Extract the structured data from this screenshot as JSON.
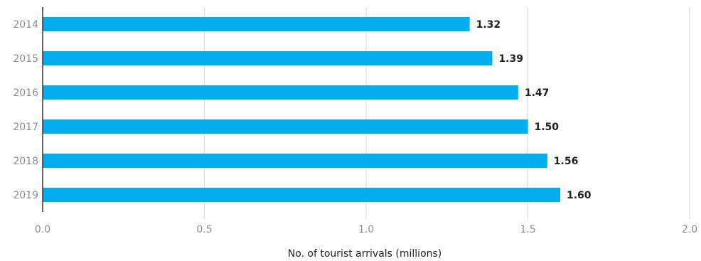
{
  "chart_data": {
    "type": "bar",
    "orientation": "horizontal",
    "categories": [
      "2014",
      "2015",
      "2016",
      "2017",
      "2018",
      "2019"
    ],
    "values": [
      1.32,
      1.39,
      1.47,
      1.5,
      1.56,
      1.6
    ],
    "value_labels": [
      "1.32",
      "1.39",
      "1.47",
      "1.50",
      "1.56",
      "1.60"
    ],
    "xlabel": "No. of tourist arrivals (millions)",
    "xlim": [
      0,
      2.0
    ],
    "xticks": [
      0,
      0.5,
      1.0,
      1.5,
      2.0
    ],
    "xtick_labels": [
      "0.0",
      "0.5",
      "1.0",
      "1.5",
      "2.0"
    ],
    "grid": true,
    "bar_color": "#00adef",
    "grid_color": "#d9d9d9",
    "axis_color": "#333333"
  }
}
